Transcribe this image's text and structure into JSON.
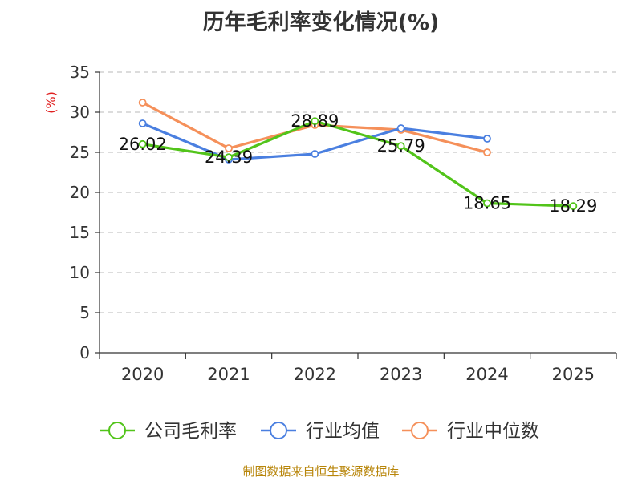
{
  "title": "历年毛利率变化情况(%)",
  "source": "制图数据来自恒生聚源数据库",
  "chart_data": {
    "type": "line",
    "title": "历年毛利率变化情况(%)",
    "ylabel": "(%)",
    "xlabel": "",
    "categories": [
      "2020",
      "2021",
      "2022",
      "2023",
      "2024",
      "2025"
    ],
    "ylim": [
      0,
      35
    ],
    "yticks": [
      0,
      5,
      10,
      15,
      20,
      25,
      30,
      35
    ],
    "grid": "horizontal-dashed",
    "legend_position": "bottom",
    "series": [
      {
        "name": "公司毛利率",
        "color": "#52c41a",
        "values": [
          26.02,
          24.39,
          28.89,
          25.79,
          18.65,
          18.29
        ],
        "labels": [
          "26.02",
          "24.39",
          "28.89",
          "25.79",
          "18.65",
          "18.29"
        ]
      },
      {
        "name": "行业均值",
        "color": "#4a7fe0",
        "values": [
          28.6,
          24.1,
          24.8,
          28.0,
          26.7,
          null
        ]
      },
      {
        "name": "行业中位数",
        "color": "#f5905a",
        "values": [
          31.2,
          25.5,
          28.4,
          27.8,
          25.0,
          null
        ]
      }
    ]
  }
}
